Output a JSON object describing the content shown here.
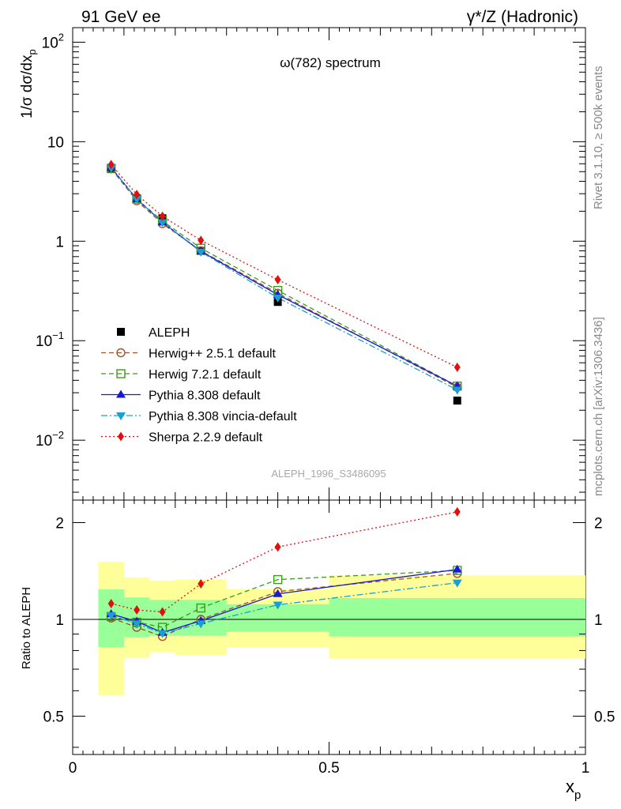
{
  "header": {
    "left": "91 GeV ee",
    "right": "γ*/Z (Hadronic)"
  },
  "side_labels": {
    "rivet": "Rivet 3.1.10, ≥ 500k events",
    "mcplots": "mcplots.cern.ch [arXiv:1306.3436]"
  },
  "chart_data": [
    {
      "type": "line",
      "title": "ω(782) spectrum",
      "watermark": "ALEPH_1996_S3486095",
      "ylabel": "1/σ dσ/dx_p",
      "xlabel": "x_p",
      "yscale": "log",
      "ylim": [
        0.0025,
        140
      ],
      "xlim": [
        0,
        1
      ],
      "ytick_labels": [
        "10^-2",
        "10^-1",
        "1",
        "10",
        "10^2"
      ],
      "legend_position": "lower-left",
      "x": [
        0.075,
        0.125,
        0.175,
        0.25,
        0.4,
        0.75
      ],
      "series": [
        {
          "name": "ALEPH",
          "color": "#000000",
          "marker": "square",
          "values": [
            5.3,
            2.7,
            1.7,
            0.8,
            0.245,
            0.025
          ]
        },
        {
          "name": "Herwig++ 2.5.1 default",
          "color": "#a0522d",
          "marker": "open-circle",
          "dash": "dashed",
          "values": [
            5.35,
            2.55,
            1.5,
            0.8,
            0.3,
            0.034
          ]
        },
        {
          "name": "Herwig 7.2.1 default",
          "color": "#3a9a1a",
          "marker": "open-square",
          "dash": "dashed",
          "values": [
            5.4,
            2.65,
            1.6,
            0.85,
            0.32,
            0.035
          ]
        },
        {
          "name": "Pythia 8.308 default",
          "color": "#1818d8",
          "marker": "triangle-up",
          "dash": "solid",
          "values": [
            5.5,
            2.65,
            1.55,
            0.79,
            0.29,
            0.035
          ]
        },
        {
          "name": "Pythia 8.308 vincia-default",
          "color": "#1aa0d0",
          "marker": "triangle-down",
          "dash": "dashdot",
          "values": [
            5.45,
            2.65,
            1.55,
            0.78,
            0.27,
            0.032
          ]
        },
        {
          "name": "Sherpa 2.2.9 default",
          "color": "#e01010",
          "marker": "diamond",
          "dash": "dotted",
          "values": [
            5.9,
            2.95,
            1.78,
            1.02,
            0.41,
            0.054
          ]
        }
      ]
    },
    {
      "type": "line",
      "ylabel": "Ratio to ALEPH",
      "xlabel": "x_p",
      "ylim": [
        0.38,
        2.35
      ],
      "xlim": [
        0,
        1
      ],
      "ytick_labels": [
        "0.5",
        "1",
        "2"
      ],
      "xtick_labels": [
        "0",
        "0.5",
        "1"
      ],
      "bands": [
        {
          "x0": 0.05,
          "x1": 0.1,
          "yellow": [
            0.58,
            1.51
          ],
          "green": [
            0.82,
            1.24
          ]
        },
        {
          "x0": 0.1,
          "x1": 0.15,
          "yellow": [
            0.76,
            1.35
          ],
          "green": [
            0.88,
            1.17
          ]
        },
        {
          "x0": 0.15,
          "x1": 0.2,
          "yellow": [
            0.79,
            1.32
          ],
          "green": [
            0.89,
            1.15
          ]
        },
        {
          "x0": 0.2,
          "x1": 0.3,
          "yellow": [
            0.775,
            1.33
          ],
          "green": [
            0.89,
            1.15
          ]
        },
        {
          "x0": 0.3,
          "x1": 0.5,
          "yellow": [
            0.82,
            1.24
          ],
          "green": [
            0.915,
            1.115
          ]
        },
        {
          "x0": 0.5,
          "x1": 1.0,
          "yellow": [
            0.755,
            1.37
          ],
          "green": [
            0.885,
            1.165
          ]
        }
      ],
      "series": [
        {
          "name": "Herwig++ 2.5.1 default",
          "values": [
            1.01,
            0.945,
            0.885,
            1.0,
            1.22,
            1.39
          ]
        },
        {
          "name": "Herwig 7.2.1 default",
          "values": [
            1.02,
            0.98,
            0.945,
            1.085,
            1.33,
            1.42
          ]
        },
        {
          "name": "Pythia 8.308 default",
          "values": [
            1.04,
            0.985,
            0.91,
            0.99,
            1.2,
            1.43
          ]
        },
        {
          "name": "Pythia 8.308 vincia-default",
          "values": [
            1.03,
            0.97,
            0.905,
            0.97,
            1.11,
            1.3
          ]
        },
        {
          "name": "Sherpa 2.2.9 default",
          "values": [
            1.12,
            1.07,
            1.055,
            1.29,
            1.68,
            2.16
          ]
        }
      ]
    }
  ]
}
